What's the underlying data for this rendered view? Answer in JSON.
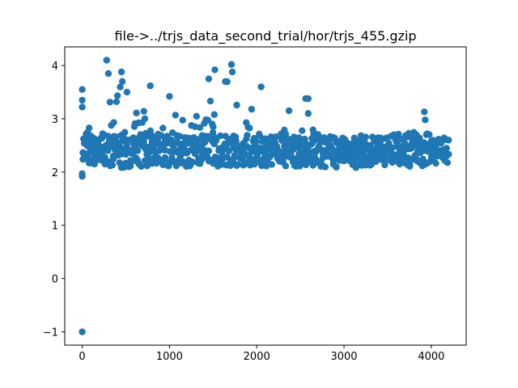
{
  "chart_data": {
    "type": "scatter",
    "title": "file->../trjs_data_second_trial/hor/trjs_455.gzip",
    "xlabel": "",
    "ylabel": "",
    "xlim": [
      -200,
      4400
    ],
    "ylim": [
      -1.25,
      4.35
    ],
    "xticks": [
      0,
      1000,
      2000,
      3000,
      4000
    ],
    "yticks": [
      -1,
      0,
      1,
      2,
      3,
      4
    ],
    "ytick_labels": [
      "−1",
      "0",
      "1",
      "2",
      "3",
      "4"
    ],
    "grid": false,
    "marker_color": "#1f77b4",
    "n_points": 4200,
    "series": [
      {
        "outliers": [
          [
            0,
            -1.0
          ],
          [
            0,
            1.92
          ],
          [
            0,
            1.97
          ],
          [
            0,
            3.55
          ],
          [
            0,
            3.35
          ],
          [
            0,
            3.22
          ]
        ],
        "peaks": [
          [
            280,
            4.1
          ],
          [
            300,
            3.85
          ],
          [
            450,
            3.88
          ],
          [
            460,
            3.7
          ],
          [
            780,
            3.62
          ],
          [
            1000,
            3.42
          ],
          [
            1450,
            3.75
          ],
          [
            1520,
            3.92
          ],
          [
            1640,
            3.7
          ],
          [
            1710,
            4.02
          ],
          [
            1720,
            3.88
          ],
          [
            2050,
            3.6
          ],
          [
            2370,
            3.15
          ],
          [
            2560,
            3.38
          ],
          [
            2590,
            3.38
          ],
          [
            2590,
            3.1
          ],
          [
            3920,
            3.13
          ],
          [
            3930,
            2.98
          ]
        ],
        "bands": [
          {
            "x": [
              0,
              300
            ],
            "y": [
              2.15,
              2.95
            ]
          },
          {
            "x": [
              300,
              600
            ],
            "y": [
              2.05,
              3.6
            ]
          },
          {
            "x": [
              600,
              1000
            ],
            "y": [
              2.1,
              3.2
            ]
          },
          {
            "x": [
              1000,
              1300
            ],
            "y": [
              2.1,
              3.1
            ]
          },
          {
            "x": [
              1300,
              1800
            ],
            "y": [
              2.1,
              3.7
            ]
          },
          {
            "x": [
              1800,
              2100
            ],
            "y": [
              2.1,
              3.3
            ]
          },
          {
            "x": [
              2100,
              2400
            ],
            "y": [
              2.1,
              2.8
            ]
          },
          {
            "x": [
              2400,
              2700
            ],
            "y": [
              2.1,
              2.9
            ]
          },
          {
            "x": [
              2700,
              3500
            ],
            "y": [
              2.08,
              2.72
            ]
          },
          {
            "x": [
              3500,
              4000
            ],
            "y": [
              2.1,
              2.75
            ]
          },
          {
            "x": [
              4000,
              4200
            ],
            "y": [
              2.15,
              2.65
            ]
          }
        ]
      }
    ]
  }
}
